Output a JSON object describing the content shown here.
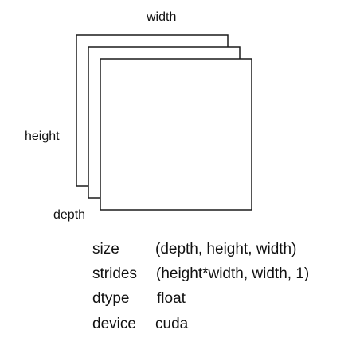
{
  "diagram": {
    "labels": {
      "width": "width",
      "height": "height",
      "depth": "depth"
    },
    "layer_count": 3,
    "properties": [
      {
        "key": "size",
        "value": "(depth, height, width)"
      },
      {
        "key": "strides",
        "value": "(height*width, width, 1)"
      },
      {
        "key": "dtype",
        "value": "float"
      },
      {
        "key": "device",
        "value": "cuda"
      }
    ]
  }
}
